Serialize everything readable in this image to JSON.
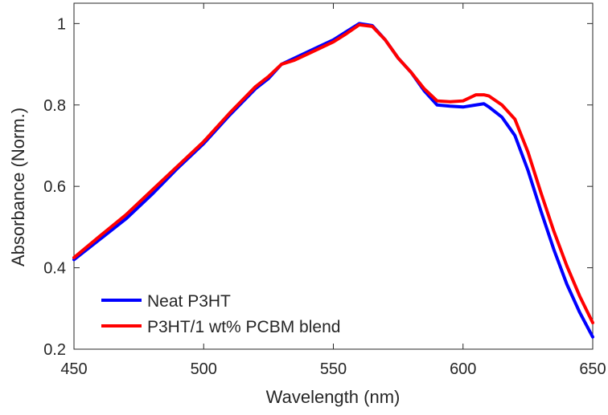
{
  "chart_data": {
    "type": "line",
    "title": "",
    "xlabel": "Wavelength (nm)",
    "ylabel": "Absorbance (Norm.)",
    "xlim": [
      450,
      650
    ],
    "ylim": [
      0.2,
      1.05
    ],
    "xticks": [
      450,
      500,
      550,
      600,
      650
    ],
    "yticks": [
      0.2,
      0.4,
      0.6,
      0.8,
      1
    ],
    "xtick_labels": [
      "450",
      "500",
      "550",
      "600",
      "650"
    ],
    "ytick_labels": [
      "0.2",
      "0.4",
      "0.6",
      "0.8",
      "1"
    ],
    "grid": false,
    "box": true,
    "legend_position": "bottom-left",
    "series": [
      {
        "name": "Neat P3HT",
        "color": "#0000ff",
        "x": [
          450,
          460,
          470,
          480,
          490,
          500,
          510,
          520,
          525,
          530,
          535,
          540,
          545,
          550,
          555,
          560,
          565,
          570,
          575,
          580,
          585,
          590,
          595,
          600,
          605,
          608,
          610,
          615,
          620,
          625,
          630,
          635,
          640,
          645,
          650
        ],
        "y": [
          0.42,
          0.47,
          0.52,
          0.58,
          0.645,
          0.705,
          0.775,
          0.84,
          0.865,
          0.9,
          0.915,
          0.93,
          0.945,
          0.96,
          0.98,
          1.0,
          0.995,
          0.96,
          0.915,
          0.88,
          0.835,
          0.8,
          0.797,
          0.795,
          0.8,
          0.803,
          0.795,
          0.77,
          0.725,
          0.64,
          0.54,
          0.445,
          0.36,
          0.29,
          0.23
        ]
      },
      {
        "name": "P3HT/1 wt% PCBM blend",
        "color": "#ff0000",
        "x": [
          450,
          460,
          470,
          480,
          490,
          500,
          510,
          520,
          525,
          530,
          535,
          540,
          545,
          550,
          555,
          560,
          565,
          570,
          575,
          580,
          585,
          590,
          595,
          600,
          605,
          608,
          610,
          615,
          620,
          625,
          630,
          635,
          640,
          645,
          650
        ],
        "y": [
          0.425,
          0.478,
          0.53,
          0.59,
          0.65,
          0.71,
          0.78,
          0.845,
          0.87,
          0.9,
          0.91,
          0.925,
          0.94,
          0.955,
          0.975,
          0.997,
          0.993,
          0.96,
          0.915,
          0.88,
          0.84,
          0.81,
          0.808,
          0.81,
          0.825,
          0.825,
          0.822,
          0.8,
          0.765,
          0.685,
          0.585,
          0.49,
          0.405,
          0.33,
          0.265
        ]
      }
    ]
  }
}
